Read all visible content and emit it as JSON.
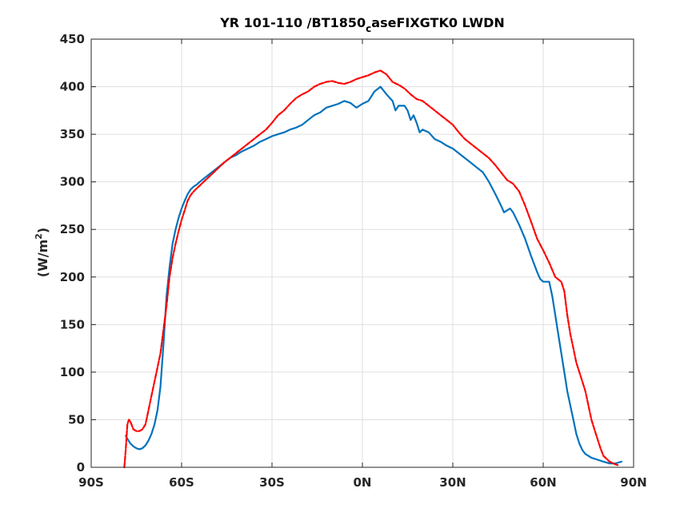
{
  "chart_data": {
    "type": "line",
    "title": "YR 101-110 /BT1850",
    "title_sub": "c",
    "title_rest": "aseFIXGTK0 LWDN",
    "ylabel_main": "(W/m",
    "ylabel_sup": "2",
    "ylabel_close": ")",
    "xlim": [
      -90,
      90
    ],
    "ylim": [
      0,
      450
    ],
    "grid": true,
    "xticks": [
      {
        "value": -90,
        "label": "90S"
      },
      {
        "value": -60,
        "label": "60S"
      },
      {
        "value": -30,
        "label": "30S"
      },
      {
        "value": 0,
        "label": "0N"
      },
      {
        "value": 30,
        "label": "30N"
      },
      {
        "value": 60,
        "label": "60N"
      },
      {
        "value": 90,
        "label": "90N"
      }
    ],
    "yticks": [
      {
        "value": 0,
        "label": "0"
      },
      {
        "value": 50,
        "label": "50"
      },
      {
        "value": 100,
        "label": "100"
      },
      {
        "value": 150,
        "label": "150"
      },
      {
        "value": 200,
        "label": "200"
      },
      {
        "value": 250,
        "label": "250"
      },
      {
        "value": 300,
        "label": "300"
      },
      {
        "value": 350,
        "label": "350"
      },
      {
        "value": 400,
        "label": "400"
      },
      {
        "value": 450,
        "label": "450"
      }
    ],
    "series": [
      {
        "color": "#0072bd",
        "style": "solid",
        "x": [
          -78.5,
          -78,
          -77,
          -76,
          -75,
          -74,
          -73,
          -72,
          -71,
          -70,
          -69,
          -68,
          -67,
          -66,
          -65,
          -64,
          -63,
          -62,
          -61,
          -60,
          -59,
          -58,
          -57,
          -56,
          -55,
          -54,
          -52,
          -50,
          -48,
          -46,
          -44,
          -42,
          -40,
          -38,
          -36,
          -34,
          -32,
          -30,
          -28,
          -26,
          -24,
          -22,
          -20,
          -18,
          -16,
          -14,
          -12,
          -10,
          -8,
          -6,
          -4,
          -2,
          0,
          2,
          4,
          6,
          8,
          10,
          11,
          12,
          14,
          15,
          16,
          17,
          18,
          19,
          20,
          22,
          24,
          26,
          28,
          30,
          32,
          34,
          36,
          38,
          40,
          42,
          44,
          46,
          47,
          48,
          49,
          50,
          52,
          54,
          56,
          58,
          59,
          60,
          62,
          63,
          64,
          65,
          66,
          67,
          68,
          69,
          70,
          71,
          72,
          73,
          74,
          76,
          78,
          80,
          82,
          84,
          85,
          86
        ],
        "y": [
          33,
          30,
          25,
          22,
          20,
          19,
          20,
          23,
          28,
          35,
          45,
          60,
          85,
          130,
          180,
          210,
          235,
          250,
          262,
          272,
          280,
          287,
          292,
          295,
          297,
          300,
          305,
          310,
          315,
          320,
          325,
          328,
          332,
          335,
          338,
          342,
          345,
          348,
          350,
          352,
          355,
          357,
          360,
          365,
          370,
          373,
          378,
          380,
          382,
          385,
          383,
          378,
          382,
          385,
          395,
          400,
          392,
          385,
          375,
          380,
          380,
          375,
          365,
          370,
          362,
          352,
          355,
          352,
          345,
          342,
          338,
          335,
          330,
          325,
          320,
          315,
          310,
          300,
          288,
          275,
          268,
          270,
          272,
          268,
          255,
          240,
          222,
          205,
          198,
          195,
          195,
          180,
          160,
          140,
          120,
          100,
          80,
          65,
          50,
          35,
          25,
          18,
          14,
          10,
          8,
          6,
          4,
          4,
          5,
          6
        ]
      },
      {
        "color": "#ff0000",
        "style": "dashed",
        "x": [
          -79,
          -78.5,
          -78,
          -77.5,
          -77,
          -76,
          -75,
          -74,
          -73,
          -72,
          -71,
          -70,
          -69,
          -68,
          -67,
          -66,
          -65,
          -64,
          -63,
          -62,
          -61,
          -60,
          -59,
          -58,
          -57,
          -56,
          -55,
          -54,
          -52,
          -50,
          -48,
          -46,
          -44,
          -42,
          -40,
          -38,
          -36,
          -34,
          -32,
          -30,
          -28,
          -26,
          -24,
          -22,
          -20,
          -18,
          -16,
          -14,
          -12,
          -10,
          -8,
          -6,
          -4,
          -2,
          0,
          2,
          4,
          6,
          8,
          10,
          12,
          14,
          16,
          18,
          20,
          22,
          24,
          26,
          28,
          30,
          32,
          34,
          36,
          38,
          40,
          42,
          44,
          46,
          48,
          50,
          52,
          54,
          56,
          58,
          60,
          62,
          64,
          66,
          67,
          68,
          69,
          70,
          71,
          72,
          73,
          74,
          75,
          76,
          77,
          78,
          79,
          80,
          82,
          84,
          85
        ],
        "y": [
          0,
          20,
          45,
          50,
          48,
          40,
          38,
          38,
          40,
          45,
          60,
          75,
          90,
          105,
          120,
          145,
          170,
          200,
          220,
          235,
          248,
          260,
          270,
          280,
          286,
          290,
          293,
          296,
          302,
          308,
          314,
          320,
          325,
          330,
          335,
          340,
          345,
          350,
          355,
          362,
          370,
          375,
          382,
          388,
          392,
          395,
          400,
          403,
          405,
          406,
          404,
          403,
          405,
          408,
          410,
          412,
          415,
          417,
          413,
          405,
          402,
          398,
          392,
          387,
          385,
          380,
          375,
          370,
          365,
          360,
          352,
          345,
          340,
          335,
          330,
          325,
          318,
          310,
          302,
          298,
          290,
          275,
          258,
          240,
          228,
          215,
          200,
          195,
          185,
          160,
          140,
          125,
          110,
          100,
          90,
          80,
          65,
          50,
          40,
          30,
          20,
          12,
          6,
          3,
          2
        ]
      }
    ]
  }
}
